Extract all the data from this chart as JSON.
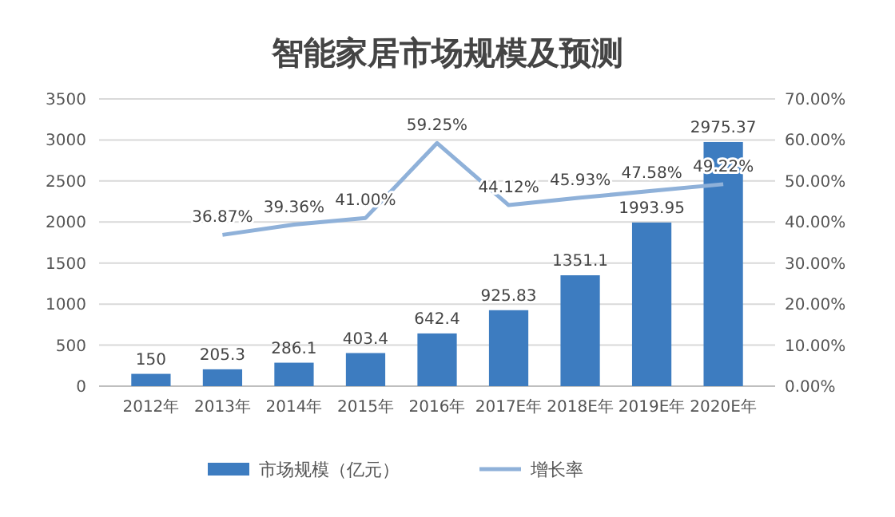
{
  "chart_data": {
    "type": "bar",
    "title": "智能家居市场规模及预测",
    "categories": [
      "2012年",
      "2013年",
      "2014年",
      "2015年",
      "2016年",
      "2017E年",
      "2018E年",
      "2019E年",
      "2020E年"
    ],
    "series": [
      {
        "name": "市场规模（亿元）",
        "color": "#3d7cc0",
        "values": [
          150,
          205.3,
          286.1,
          403.4,
          642.4,
          925.83,
          1351.1,
          1993.95,
          2975.37
        ]
      },
      {
        "name": "增长率",
        "type": "line",
        "axis": "y2",
        "color": "#8fb1d9",
        "values": [
          null,
          36.87,
          39.36,
          41.0,
          59.25,
          44.12,
          45.93,
          47.58,
          49.22
        ],
        "value_labels": [
          null,
          "36.87%",
          "39.36%",
          "41.00%",
          "59.25%",
          "44.12%",
          "45.93%",
          "47.58%",
          "49.22%"
        ]
      }
    ],
    "data_labels": true,
    "ylim": [
      0,
      3500
    ],
    "yticks": [
      0,
      500,
      1000,
      1500,
      2000,
      2500,
      3000,
      3500
    ],
    "y2lim": [
      0,
      70
    ],
    "y2ticks": [
      {
        "value": 0,
        "label": "0.00%"
      },
      {
        "value": 10,
        "label": "10.00%"
      },
      {
        "value": 20,
        "label": "20.00%"
      },
      {
        "value": 30,
        "label": "30.00%"
      },
      {
        "value": 40,
        "label": "40.00%"
      },
      {
        "value": 50,
        "label": "50.00%"
      },
      {
        "value": 60,
        "label": "60.00%"
      },
      {
        "value": 70,
        "label": "70.00%"
      }
    ],
    "grid": "y",
    "legend": "bottom",
    "marker": "none",
    "line_style": "solid"
  }
}
